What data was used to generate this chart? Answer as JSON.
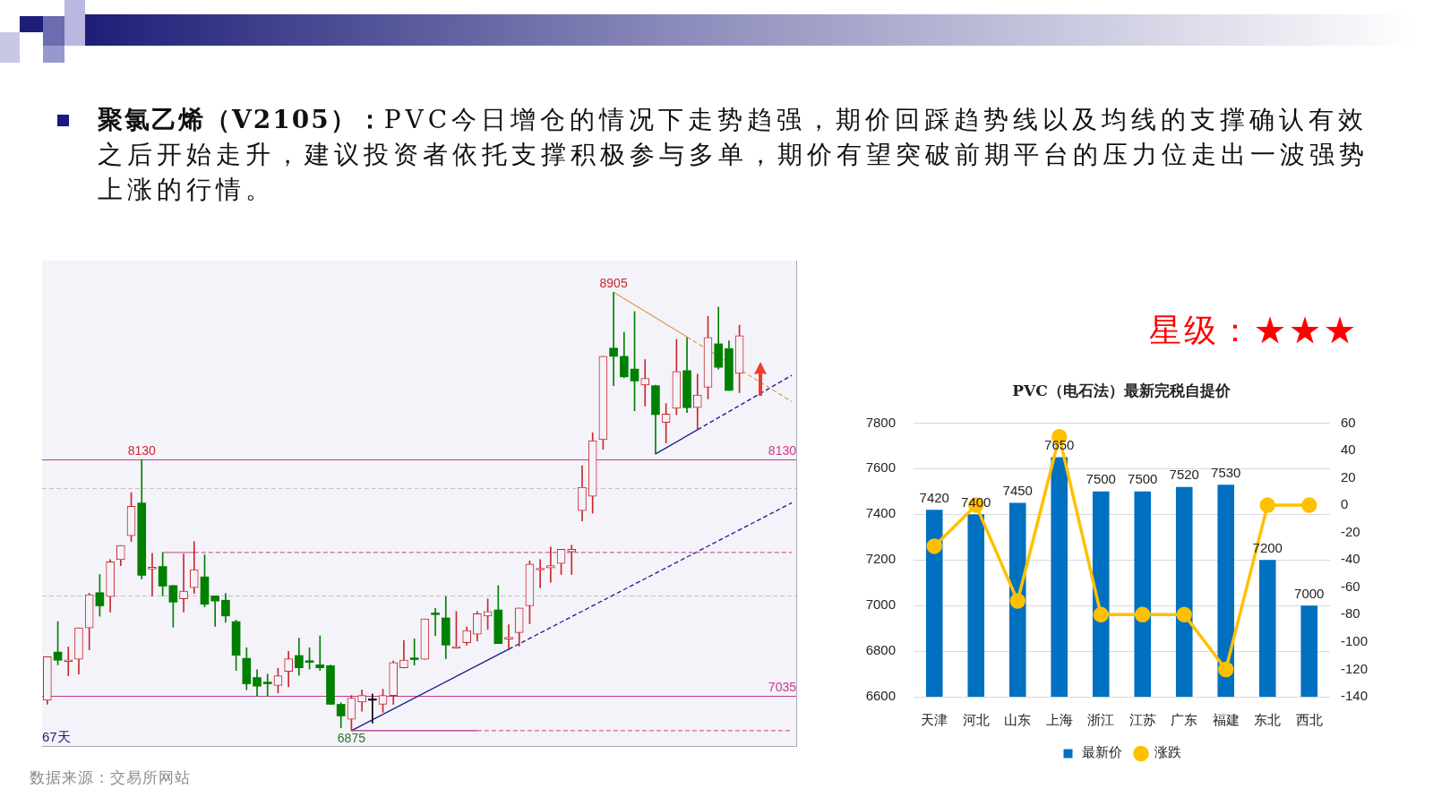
{
  "chart_data": [
    {
      "type": "other",
      "title": "聚氯乙烯（V2105）：",
      "subtitle": "PVC今日增仓的情况下走势趋强，期价回踩趋势线以及均线的支撑确认有效之后开始走升，建议投资者依托支撑积极参与多单，期价有望突破前期平台的压力位走出一波强势上涨的行情。"
    },
    {
      "type": "candlestick",
      "tick_labels": false,
      "categories": [
        null,
        null,
        null,
        null,
        null,
        null,
        null,
        null,
        null,
        null,
        null,
        null,
        null,
        null,
        null,
        null,
        null,
        null,
        null,
        null,
        null,
        null,
        null,
        null,
        null,
        null,
        null,
        null,
        null,
        null,
        null,
        null,
        null,
        null,
        null,
        null,
        null,
        null,
        null,
        null,
        null,
        null,
        null,
        null,
        null,
        null,
        null,
        null,
        null,
        null,
        null,
        null,
        null,
        null,
        null,
        null,
        null,
        null,
        null,
        null,
        null,
        null,
        null,
        null,
        null,
        null,
        null,
        null,
        null,
        null,
        null,
        null
      ],
      "ohlc": [
        [
          7016,
          7217,
          6997,
          7217
        ],
        [
          7239,
          7380,
          7180,
          7201
        ],
        [
          7195,
          7263,
          7129,
          7203
        ],
        [
          7205,
          7351,
          7137,
          7351
        ],
        [
          7351,
          7511,
          7249,
          7504
        ],
        [
          7514,
          7598,
          7405,
          7453
        ],
        [
          7496,
          7667,
          7424,
          7657
        ],
        [
          7667,
          7732,
          7639,
          7732
        ],
        [
          7778,
          7977,
          7751,
          7914
        ],
        [
          7929,
          8130,
          7577,
          7594
        ],
        [
          7623,
          7696,
          7499,
          7632
        ],
        [
          7635,
          7700,
          7499,
          7544
        ],
        [
          7547,
          7547,
          7354,
          7470
        ],
        [
          7485,
          7693,
          7424,
          7521
        ],
        [
          7537,
          7751,
          7511,
          7620
        ],
        [
          7587,
          7689,
          7448,
          7460
        ],
        [
          7499,
          7499,
          7358,
          7475
        ],
        [
          7479,
          7511,
          7376,
          7406
        ],
        [
          7380,
          7387,
          7154,
          7224
        ],
        [
          7210,
          7259,
          7064,
          7092
        ],
        [
          7121,
          7157,
          7035,
          7081
        ],
        [
          7100,
          7137,
          7035,
          7092
        ],
        [
          7084,
          7164,
          7049,
          7129
        ],
        [
          7150,
          7242,
          7078,
          7208
        ],
        [
          7223,
          7303,
          7132,
          7166
        ],
        [
          7199,
          7259,
          7160,
          7191
        ],
        [
          7180,
          7314,
          7154,
          7166
        ],
        [
          7176,
          7179,
          6997,
          6997
        ],
        [
          6997,
          7004,
          6889,
          6943
        ],
        [
          6928,
          7038,
          6875,
          7026
        ],
        [
          7008,
          7064,
          6965,
          7038
        ],
        [
          7022,
          7045,
          6910,
          7016
        ],
        [
          6997,
          7067,
          6960,
          7038
        ],
        [
          7038,
          7198,
          6997,
          7190
        ],
        [
          7166,
          7293,
          7166,
          7202
        ],
        [
          7212,
          7300,
          7179,
          7204
        ],
        [
          7205,
          7392,
          7205,
          7392
        ],
        [
          7420,
          7441,
          7315,
          7412
        ],
        [
          7397,
          7496,
          7208,
          7271
        ],
        [
          7257,
          7427,
          7257,
          7265
        ],
        [
          7282,
          7355,
          7271,
          7339
        ],
        [
          7322,
          7427,
          7290,
          7416
        ],
        [
          7406,
          7485,
          7344,
          7427
        ],
        [
          7434,
          7547,
          7278,
          7278
        ],
        [
          7299,
          7365,
          7249,
          7307
        ],
        [
          7329,
          7443,
          7266,
          7443
        ],
        [
          7453,
          7661,
          7370,
          7646
        ],
        [
          7619,
          7667,
          7536,
          7627
        ],
        [
          7628,
          7725,
          7562,
          7639
        ],
        [
          7649,
          7715,
          7598,
          7715
        ],
        [
          7703,
          7734,
          7598,
          7715
        ],
        [
          7894,
          8101,
          7846,
          8002
        ],
        [
          7960,
          8254,
          7882,
          8217
        ],
        [
          8222,
          8608,
          8178,
          8608
        ],
        [
          8646,
          8905,
          8472,
          8608
        ],
        [
          8608,
          8720,
          8509,
          8513
        ],
        [
          8549,
          8815,
          8356,
          8494
        ],
        [
          8475,
          8593,
          8378,
          8506
        ],
        [
          8472,
          8475,
          8156,
          8338
        ],
        [
          8302,
          8389,
          8207,
          8341
        ],
        [
          8367,
          8686,
          8338,
          8538
        ],
        [
          8542,
          8694,
          8348,
          8370
        ],
        [
          8370,
          8526,
          8268,
          8429
        ],
        [
          8465,
          8793,
          8411,
          8695
        ],
        [
          8666,
          8836,
          8549,
          8557
        ],
        [
          8644,
          8680,
          8450,
          8450
        ],
        [
          8529,
          8753,
          8440,
          8704
        ],
        null,
        null,
        null,
        null,
        null
      ],
      "colors": [
        "#c8282d",
        "#008000",
        "#c8282d",
        "#c8282d",
        "#c8282d",
        "#008000",
        "#c8282d",
        "#c8282d",
        "#c8282d",
        "#008000",
        "#c8282d",
        "#008000",
        "#008000",
        "#c8282d",
        "#c8282d",
        "#008000",
        "#008000",
        "#008000",
        "#008000",
        "#008000",
        "#008000",
        "#008000",
        "#c8282d",
        "#c8282d",
        "#008000",
        "#008000",
        "#008000",
        "#008000",
        "#008000",
        "#c8282d",
        "#c8282d",
        "#000000",
        "#c8282d",
        "#c8282d",
        "#c8282d",
        "#008000",
        "#c8282d",
        "#008000",
        "#008000",
        "#c8282d",
        "#c8282d",
        "#c8282d",
        "#c8282d",
        "#008000",
        "#c8282d",
        "#c8282d",
        "#c8282d",
        "#c8282d",
        "#c8282d",
        "#c8282d",
        "#c8282d",
        "#c8282d",
        "#c8282d",
        "#c8282d",
        "#008000",
        "#008000",
        "#008000",
        "#c8282d",
        "#008000",
        "#c8282d",
        "#c8282d",
        "#008000",
        "#c8282d",
        "#c8282d",
        "#008000",
        "#008000",
        "#c8282d",
        null,
        null,
        null,
        null,
        null
      ],
      "series": [
        {
          "type": "line",
          "color": "#d8609a",
          "line_style": "solid",
          "values": [
            null,
            null,
            null,
            null,
            null,
            null,
            null,
            null,
            null,
            null,
            null,
            7700,
            null,
            null,
            7700,
            null,
            null,
            null,
            null,
            null,
            null,
            null,
            null,
            null,
            null,
            null,
            null,
            null,
            null,
            null,
            null,
            null,
            null,
            null,
            null,
            null,
            null,
            null,
            null,
            null,
            null,
            null,
            null,
            null,
            null,
            null,
            null,
            null,
            null,
            null,
            null,
            null,
            null,
            null,
            null,
            null,
            null,
            null,
            null,
            null,
            null,
            null,
            null,
            null,
            null,
            null,
            null,
            null,
            null,
            null,
            null,
            null
          ]
        },
        {
          "type": "line",
          "color": "#d8609a",
          "line_style": "dashed",
          "values": [
            null,
            null,
            null,
            null,
            null,
            null,
            null,
            null,
            null,
            null,
            null,
            null,
            null,
            null,
            7700,
            null,
            null,
            null,
            null,
            null,
            null,
            null,
            null,
            null,
            null,
            null,
            null,
            null,
            null,
            null,
            null,
            null,
            null,
            null,
            null,
            null,
            null,
            null,
            null,
            null,
            null,
            null,
            null,
            null,
            null,
            null,
            null,
            null,
            null,
            null,
            null,
            null,
            null,
            null,
            null,
            null,
            null,
            null,
            null,
            null,
            null,
            null,
            null,
            null,
            null,
            null,
            null,
            null,
            null,
            null,
            null,
            7700
          ]
        },
        {
          "type": "line",
          "color": "#b0308a",
          "line_style": "solid",
          "values": [
            null,
            null,
            null,
            null,
            null,
            null,
            null,
            null,
            null,
            null,
            null,
            null,
            null,
            null,
            null,
            null,
            null,
            null,
            null,
            null,
            null,
            null,
            null,
            null,
            null,
            null,
            null,
            null,
            null,
            6875,
            null,
            null,
            null,
            null,
            null,
            null,
            null,
            null,
            null,
            null,
            null,
            6875,
            null,
            null,
            null,
            null,
            null,
            null,
            null,
            null,
            null,
            null,
            null,
            null,
            null,
            null,
            null,
            null,
            null,
            null,
            null,
            null,
            null,
            null,
            null,
            null,
            null,
            null,
            null,
            null,
            null,
            null
          ]
        },
        {
          "type": "line",
          "color": "#d8609a",
          "line_style": "dashed",
          "values": [
            null,
            null,
            null,
            null,
            null,
            null,
            null,
            null,
            null,
            null,
            null,
            null,
            null,
            null,
            null,
            null,
            null,
            null,
            null,
            null,
            null,
            null,
            null,
            null,
            null,
            null,
            null,
            null,
            null,
            null,
            null,
            null,
            null,
            null,
            null,
            null,
            null,
            null,
            null,
            null,
            null,
            6875,
            null,
            null,
            null,
            null,
            null,
            null,
            null,
            null,
            null,
            null,
            null,
            null,
            null,
            null,
            null,
            null,
            null,
            null,
            null,
            null,
            null,
            null,
            null,
            null,
            null,
            null,
            null,
            null,
            null,
            6875
          ]
        },
        {
          "type": "line",
          "color": "#1c1c8c",
          "line_style": "solid",
          "values": [
            null,
            null,
            null,
            null,
            null,
            null,
            null,
            null,
            null,
            null,
            null,
            null,
            null,
            null,
            null,
            null,
            null,
            null,
            null,
            null,
            null,
            null,
            null,
            null,
            null,
            null,
            null,
            null,
            null,
            6875,
            null,
            null,
            null,
            null,
            null,
            null,
            null,
            null,
            null,
            null,
            null,
            null,
            null,
            null,
            7252,
            null,
            null,
            null,
            null,
            null,
            null,
            null,
            null,
            null,
            null,
            null,
            null,
            null,
            null,
            null,
            null,
            null,
            null,
            null,
            null,
            null,
            null,
            null,
            null,
            null,
            null,
            null
          ]
        },
        {
          "type": "line",
          "color": "#1c1c8c",
          "line_style": "dashed",
          "values": [
            null,
            null,
            null,
            null,
            null,
            null,
            null,
            null,
            null,
            null,
            null,
            null,
            null,
            null,
            null,
            null,
            null,
            null,
            null,
            null,
            null,
            null,
            null,
            null,
            null,
            null,
            null,
            null,
            null,
            null,
            null,
            null,
            null,
            null,
            null,
            null,
            null,
            null,
            null,
            null,
            null,
            null,
            null,
            null,
            7252,
            null,
            null,
            null,
            null,
            null,
            null,
            null,
            null,
            null,
            null,
            null,
            null,
            null,
            null,
            null,
            null,
            null,
            null,
            null,
            null,
            null,
            null,
            null,
            null,
            null,
            null,
            7930
          ]
        },
        {
          "type": "line",
          "color": "#e0a050",
          "line_style": "solid",
          "values": [
            null,
            null,
            null,
            null,
            null,
            null,
            null,
            null,
            null,
            null,
            null,
            null,
            null,
            null,
            null,
            null,
            null,
            null,
            null,
            null,
            null,
            null,
            null,
            null,
            null,
            null,
            null,
            null,
            null,
            null,
            null,
            null,
            null,
            null,
            null,
            null,
            null,
            null,
            null,
            null,
            null,
            null,
            null,
            null,
            null,
            null,
            null,
            null,
            null,
            null,
            null,
            null,
            null,
            null,
            8905,
            null,
            null,
            null,
            null,
            null,
            null,
            8698,
            null,
            null,
            null,
            null,
            null,
            null,
            null,
            null,
            null,
            null
          ]
        },
        {
          "type": "line",
          "color": "#e0a050",
          "line_style": "dashed",
          "values": [
            null,
            null,
            null,
            null,
            null,
            null,
            null,
            null,
            null,
            null,
            null,
            null,
            null,
            null,
            null,
            null,
            null,
            null,
            null,
            null,
            null,
            null,
            null,
            null,
            null,
            null,
            null,
            null,
            null,
            null,
            null,
            null,
            null,
            null,
            null,
            null,
            null,
            null,
            null,
            null,
            null,
            null,
            null,
            null,
            null,
            null,
            null,
            null,
            null,
            null,
            null,
            null,
            null,
            null,
            null,
            null,
            null,
            null,
            null,
            null,
            null,
            8698,
            null,
            null,
            null,
            null,
            null,
            null,
            null,
            null,
            null,
            8398
          ]
        },
        {
          "type": "line",
          "color": "#1c1c8c",
          "line_style": "solid",
          "values": [
            null,
            null,
            null,
            null,
            null,
            null,
            null,
            null,
            null,
            null,
            null,
            null,
            null,
            null,
            null,
            null,
            null,
            null,
            null,
            null,
            null,
            null,
            null,
            null,
            null,
            null,
            null,
            null,
            null,
            null,
            null,
            null,
            null,
            null,
            null,
            null,
            null,
            null,
            null,
            null,
            null,
            null,
            null,
            null,
            null,
            null,
            null,
            null,
            null,
            null,
            null,
            null,
            null,
            null,
            null,
            null,
            null,
            null,
            8156,
            null,
            null,
            null,
            8268,
            null,
            null,
            null,
            null,
            null,
            null,
            null,
            null,
            null
          ]
        },
        {
          "type": "line",
          "color": "#1c1c8c",
          "line_style": "dashed",
          "values": [
            null,
            null,
            null,
            null,
            null,
            null,
            null,
            null,
            null,
            null,
            null,
            null,
            null,
            null,
            null,
            null,
            null,
            null,
            null,
            null,
            null,
            null,
            null,
            null,
            null,
            null,
            null,
            null,
            null,
            null,
            null,
            null,
            null,
            null,
            null,
            null,
            null,
            null,
            null,
            null,
            null,
            null,
            null,
            null,
            null,
            null,
            null,
            null,
            null,
            null,
            null,
            null,
            null,
            null,
            null,
            null,
            null,
            null,
            null,
            null,
            null,
            null,
            8268,
            null,
            null,
            null,
            null,
            null,
            null,
            null,
            null,
            8520
          ]
        }
      ],
      "ref_lines": [
        {
          "axis": "y",
          "value": 8130,
          "label": "8130",
          "color": "#c8388c"
        },
        {
          "axis": "y",
          "value": 7035,
          "label": "7035",
          "color": "#c8388c"
        },
        {
          "axis": "y",
          "value": 8000,
          "color": "#c4c4c4",
          "line_style": "dashed"
        },
        {
          "axis": "y",
          "value": 7500,
          "color": "#c4c4c4",
          "line_style": "dashed"
        }
      ],
      "annotations": [
        {
          "text": "8905",
          "y": 8905
        },
        {
          "text": "8130",
          "y": 8130
        },
        {
          "text": "6875",
          "y": 6875
        },
        "67天",
        "数据来源：交易所网站"
      ]
    },
    {
      "type": "bar",
      "title": "PVC（电石法）最新完税自提价",
      "categories": [
        "天津",
        "河北",
        "山东",
        "上海",
        "浙江",
        "江苏",
        "广东",
        "福建",
        "东北",
        "西北"
      ],
      "series": [
        {
          "name": "最新价",
          "type": "bar",
          "color": "#0070c0",
          "values": [
            7420,
            7400,
            7450,
            7650,
            7500,
            7500,
            7520,
            7530,
            7200,
            7000
          ],
          "value_labels": [
            "7420",
            "7400",
            "7450",
            "7650",
            "7500",
            "7500",
            "7520",
            "7530",
            "7200",
            "7000"
          ]
        },
        {
          "name": "涨跌",
          "type": "line",
          "color": "#ffc000",
          "axis": "y2",
          "marker": "circle",
          "values": [
            -30,
            0,
            -70,
            50,
            -80,
            -80,
            -80,
            -120,
            0,
            0
          ]
        }
      ],
      "ylim": [
        6600,
        7800
      ],
      "yticks": [
        6600,
        6800,
        7000,
        7200,
        7400,
        7600,
        7800
      ],
      "y2lim": [
        -140,
        60
      ],
      "y2ticks": [
        -140,
        -120,
        -100,
        -80,
        -60,
        -40,
        -20,
        0,
        20,
        40,
        60
      ],
      "grid": "y",
      "legend": "bottom",
      "annotations": [
        "星级：★★★"
      ]
    }
  ]
}
